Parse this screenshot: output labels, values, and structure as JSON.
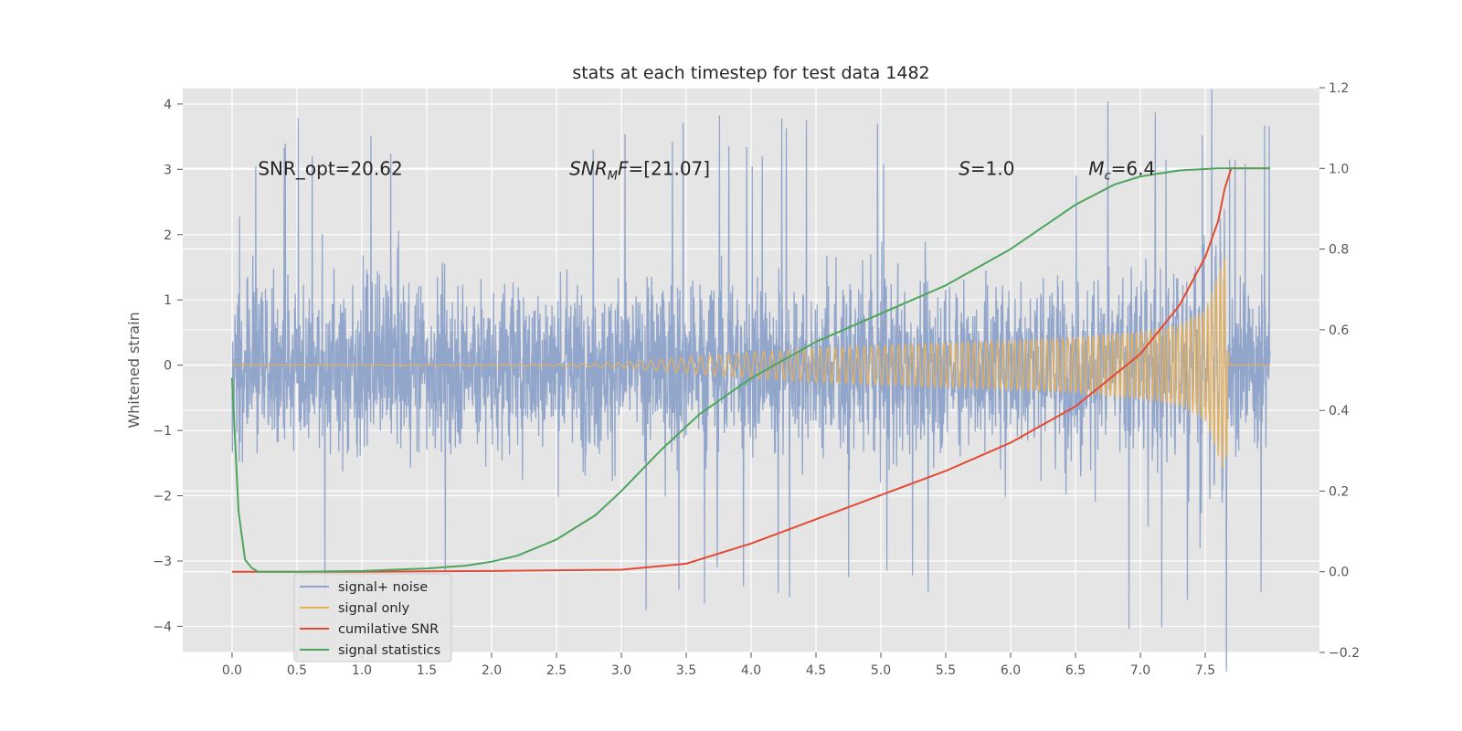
{
  "chart_data": {
    "type": "line",
    "title": "stats at each timestep for test data 1482",
    "xlabel": "",
    "ylabel": "Whitened strain",
    "ylabel_right": "",
    "xlim": [
      -0.38,
      8.38
    ],
    "ylim": [
      -4.4,
      4.25
    ],
    "ylim_right": [
      -0.2,
      1.2
    ],
    "x_ticks": [
      0.0,
      0.5,
      1.0,
      1.5,
      2.0,
      2.5,
      3.0,
      3.5,
      4.0,
      4.5,
      5.0,
      5.5,
      6.0,
      6.5,
      7.0,
      7.5
    ],
    "x_tick_labels": [
      "0.0",
      "0.5",
      "1.0",
      "1.5",
      "2.0",
      "2.5",
      "3.0",
      "3.5",
      "4.0",
      "4.5",
      "5.0",
      "5.5",
      "6.0",
      "6.5",
      "7.0",
      "7.5"
    ],
    "y_ticks": [
      -4,
      -3,
      -2,
      -1,
      0,
      1,
      2,
      3,
      4
    ],
    "y_tick_labels": [
      "−4",
      "−3",
      "−2",
      "−1",
      "0",
      "1",
      "2",
      "3",
      "4"
    ],
    "y_ticks_right": [
      -0.2,
      0.0,
      0.2,
      0.4,
      0.6,
      0.8,
      1.0,
      1.2
    ],
    "y_tick_labels_right": [
      "−0.2",
      "0.0",
      "0.2",
      "0.4",
      "0.6",
      "0.8",
      "1.0",
      "1.2"
    ],
    "grid": true,
    "legend_position": "lower-left",
    "annotations": [
      {
        "text": "SNR_opt=20.62",
        "x": 0.2,
        "y": 3.0
      },
      {
        "text": "SNR_MF=[21.07]",
        "x": 2.6,
        "y": 3.0
      },
      {
        "text": "S=1.0",
        "x": 5.6,
        "y": 3.0
      },
      {
        "text": "M_c=6.4",
        "x": 6.6,
        "y": 3.0
      }
    ],
    "series": [
      {
        "name": "signal+ noise",
        "axis": "left",
        "color": "#92a6cb",
        "description": "whitened noisy strain, approx uniform band between -2 and 2 with spikes to about +/-3.8, x from 0.0 to 8.0",
        "x_range": [
          0.0,
          8.0
        ],
        "typical_envelope": [
          -2.0,
          2.0
        ],
        "extremes": [
          -4.0,
          3.85
        ]
      },
      {
        "name": "signal only",
        "axis": "left",
        "color": "#e8b056",
        "envelope_x": [
          0.0,
          2.5,
          3.0,
          3.5,
          4.0,
          4.5,
          5.0,
          5.5,
          6.0,
          6.5,
          7.0,
          7.3,
          7.5,
          7.6,
          7.66,
          7.68,
          8.0
        ],
        "envelope_amp": [
          0.0,
          0.01,
          0.04,
          0.12,
          0.2,
          0.26,
          0.3,
          0.34,
          0.38,
          0.43,
          0.52,
          0.62,
          0.85,
          1.4,
          1.75,
          0.0,
          0.0
        ]
      },
      {
        "name": "cumilative SNR",
        "axis": "right",
        "color": "#e24a33",
        "x": [
          0.0,
          1.0,
          2.0,
          3.0,
          3.5,
          4.0,
          4.5,
          5.0,
          5.5,
          6.0,
          6.5,
          7.0,
          7.3,
          7.5,
          7.6,
          7.65,
          7.7,
          8.0
        ],
        "y": [
          0.0,
          0.0,
          0.002,
          0.005,
          0.02,
          0.07,
          0.13,
          0.19,
          0.25,
          0.32,
          0.41,
          0.54,
          0.66,
          0.78,
          0.87,
          0.95,
          1.0,
          1.0
        ]
      },
      {
        "name": "signal statistics",
        "axis": "right",
        "color": "#4ea55c",
        "x": [
          0.0,
          0.05,
          0.1,
          0.15,
          0.2,
          0.3,
          0.5,
          1.0,
          1.5,
          1.8,
          2.0,
          2.2,
          2.5,
          2.8,
          3.0,
          3.3,
          3.6,
          4.0,
          4.5,
          5.0,
          5.5,
          6.0,
          6.5,
          6.8,
          7.0,
          7.3,
          7.6,
          8.0
        ],
        "y": [
          0.48,
          0.15,
          0.03,
          0.01,
          0.0,
          0.0,
          0.0,
          0.002,
          0.008,
          0.015,
          0.025,
          0.04,
          0.08,
          0.14,
          0.2,
          0.3,
          0.39,
          0.48,
          0.57,
          0.64,
          0.71,
          0.8,
          0.91,
          0.96,
          0.98,
          0.995,
          1.0,
          1.0
        ]
      }
    ]
  }
}
